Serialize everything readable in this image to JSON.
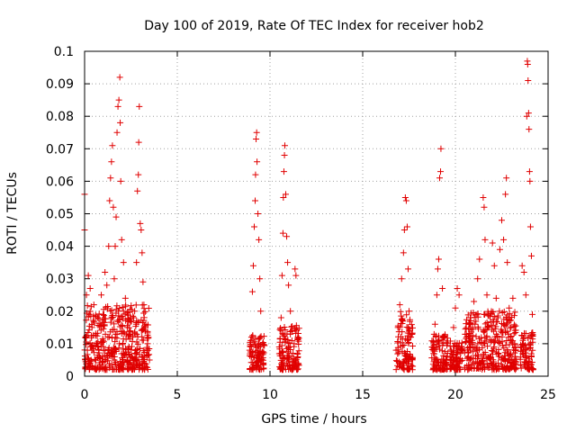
{
  "chart_data": {
    "type": "scatter",
    "title": "Day 100 of 2019, Rate Of TEC Index for receiver hob2",
    "xlabel": "GPS time / hours",
    "ylabel": "ROTI / TECUs",
    "xlim": [
      0,
      25
    ],
    "ylim": [
      0,
      0.1
    ],
    "x_ticks": [
      0,
      5,
      10,
      15,
      20,
      25
    ],
    "y_ticks": [
      0,
      0.01,
      0.02,
      0.03,
      0.04,
      0.05,
      0.06,
      0.07,
      0.08,
      0.09,
      0.1
    ],
    "x_tick_labels": [
      "0",
      "5",
      "10",
      "15",
      "20",
      "25"
    ],
    "y_tick_labels": [
      "0",
      "0.01",
      "0.02",
      "0.03",
      "0.04",
      "0.05",
      "0.06",
      "0.07",
      "0.08",
      "0.09",
      "0.1"
    ],
    "grid": true,
    "marker": "+",
    "series": [
      {
        "name": "ROTI",
        "color": "#e00000",
        "points": [
          [
            0.0,
            0.056
          ],
          [
            0.0,
            0.045
          ],
          [
            0.05,
            0.012
          ],
          [
            0.1,
            0.025
          ],
          [
            0.15,
            0.008
          ],
          [
            0.2,
            0.031
          ],
          [
            0.25,
            0.019
          ],
          [
            0.3,
            0.027
          ],
          [
            0.35,
            0.005
          ],
          [
            0.4,
            0.015
          ],
          [
            0.5,
            0.022
          ],
          [
            0.6,
            0.009
          ],
          [
            0.7,
            0.018
          ],
          [
            0.8,
            0.006
          ],
          [
            0.9,
            0.025
          ],
          [
            1.0,
            0.011
          ],
          [
            1.1,
            0.032
          ],
          [
            1.2,
            0.028
          ],
          [
            1.3,
            0.04
          ],
          [
            1.35,
            0.054
          ],
          [
            1.4,
            0.061
          ],
          [
            1.45,
            0.066
          ],
          [
            1.5,
            0.071
          ],
          [
            1.55,
            0.052
          ],
          [
            1.6,
            0.03
          ],
          [
            1.65,
            0.04
          ],
          [
            1.7,
            0.049
          ],
          [
            1.75,
            0.075
          ],
          [
            1.8,
            0.083
          ],
          [
            1.85,
            0.085
          ],
          [
            1.9,
            0.092
          ],
          [
            1.92,
            0.078
          ],
          [
            1.95,
            0.06
          ],
          [
            2.0,
            0.042
          ],
          [
            2.1,
            0.035
          ],
          [
            2.2,
            0.024
          ],
          [
            2.3,
            0.015
          ],
          [
            2.4,
            0.009
          ],
          [
            2.5,
            0.018
          ],
          [
            2.6,
            0.012
          ],
          [
            2.7,
            0.02
          ],
          [
            2.8,
            0.035
          ],
          [
            2.85,
            0.057
          ],
          [
            2.9,
            0.062
          ],
          [
            2.92,
            0.072
          ],
          [
            2.95,
            0.083
          ],
          [
            3.0,
            0.047
          ],
          [
            3.05,
            0.045
          ],
          [
            3.1,
            0.038
          ],
          [
            3.15,
            0.029
          ],
          [
            3.2,
            0.022
          ],
          [
            3.3,
            0.016
          ],
          [
            3.4,
            0.01
          ],
          [
            3.5,
            0.005
          ],
          [
            8.9,
            0.008
          ],
          [
            9.0,
            0.012
          ],
          [
            9.05,
            0.026
          ],
          [
            9.1,
            0.034
          ],
          [
            9.15,
            0.046
          ],
          [
            9.2,
            0.054
          ],
          [
            9.22,
            0.062
          ],
          [
            9.25,
            0.073
          ],
          [
            9.28,
            0.075
          ],
          [
            9.3,
            0.066
          ],
          [
            9.35,
            0.05
          ],
          [
            9.4,
            0.042
          ],
          [
            9.45,
            0.03
          ],
          [
            9.5,
            0.02
          ],
          [
            9.6,
            0.01
          ],
          [
            10.5,
            0.009
          ],
          [
            10.6,
            0.018
          ],
          [
            10.65,
            0.031
          ],
          [
            10.7,
            0.044
          ],
          [
            10.72,
            0.055
          ],
          [
            10.75,
            0.063
          ],
          [
            10.78,
            0.068
          ],
          [
            10.8,
            0.071
          ],
          [
            10.85,
            0.056
          ],
          [
            10.9,
            0.043
          ],
          [
            10.95,
            0.035
          ],
          [
            11.0,
            0.028
          ],
          [
            11.1,
            0.02
          ],
          [
            11.2,
            0.014
          ],
          [
            11.3,
            0.01
          ],
          [
            11.35,
            0.033
          ],
          [
            11.4,
            0.031
          ],
          [
            11.5,
            0.006
          ],
          [
            16.8,
            0.008
          ],
          [
            16.9,
            0.015
          ],
          [
            17.0,
            0.022
          ],
          [
            17.1,
            0.03
          ],
          [
            17.2,
            0.038
          ],
          [
            17.25,
            0.045
          ],
          [
            17.3,
            0.055
          ],
          [
            17.35,
            0.054
          ],
          [
            17.4,
            0.046
          ],
          [
            17.45,
            0.033
          ],
          [
            17.5,
            0.02
          ],
          [
            17.6,
            0.012
          ],
          [
            18.8,
            0.009
          ],
          [
            18.9,
            0.016
          ],
          [
            19.0,
            0.025
          ],
          [
            19.05,
            0.033
          ],
          [
            19.1,
            0.036
          ],
          [
            19.15,
            0.061
          ],
          [
            19.2,
            0.063
          ],
          [
            19.22,
            0.07
          ],
          [
            19.3,
            0.027
          ],
          [
            19.4,
            0.012
          ],
          [
            19.8,
            0.006
          ],
          [
            19.9,
            0.015
          ],
          [
            20.0,
            0.021
          ],
          [
            20.1,
            0.027
          ],
          [
            20.2,
            0.025
          ],
          [
            20.3,
            0.008
          ],
          [
            20.6,
            0.012
          ],
          [
            20.8,
            0.018
          ],
          [
            21.0,
            0.023
          ],
          [
            21.2,
            0.03
          ],
          [
            21.3,
            0.036
          ],
          [
            21.5,
            0.055
          ],
          [
            21.55,
            0.052
          ],
          [
            21.6,
            0.042
          ],
          [
            21.7,
            0.025
          ],
          [
            21.8,
            0.015
          ],
          [
            22.0,
            0.041
          ],
          [
            22.1,
            0.034
          ],
          [
            22.2,
            0.024
          ],
          [
            22.3,
            0.018
          ],
          [
            22.4,
            0.039
          ],
          [
            22.5,
            0.048
          ],
          [
            22.6,
            0.042
          ],
          [
            22.7,
            0.056
          ],
          [
            22.75,
            0.061
          ],
          [
            22.8,
            0.035
          ],
          [
            22.9,
            0.021
          ],
          [
            23.0,
            0.015
          ],
          [
            23.1,
            0.024
          ],
          [
            23.2,
            0.01
          ],
          [
            23.6,
            0.034
          ],
          [
            23.7,
            0.032
          ],
          [
            23.8,
            0.025
          ],
          [
            23.85,
            0.08
          ],
          [
            23.88,
            0.097
          ],
          [
            23.9,
            0.096
          ],
          [
            23.92,
            0.091
          ],
          [
            23.95,
            0.081
          ],
          [
            23.97,
            0.076
          ],
          [
            24.0,
            0.063
          ],
          [
            24.02,
            0.06
          ],
          [
            24.05,
            0.046
          ],
          [
            24.1,
            0.037
          ],
          [
            24.15,
            0.019
          ]
        ]
      }
    ],
    "dense_clusters": [
      {
        "x_range": [
          0.0,
          3.5
        ],
        "y_range": [
          0.002,
          0.022
        ]
      },
      {
        "x_range": [
          8.9,
          9.7
        ],
        "y_range": [
          0.002,
          0.013
        ]
      },
      {
        "x_range": [
          10.5,
          11.6
        ],
        "y_range": [
          0.002,
          0.016
        ]
      },
      {
        "x_range": [
          16.8,
          17.7
        ],
        "y_range": [
          0.002,
          0.02
        ]
      },
      {
        "x_range": [
          18.7,
          19.6
        ],
        "y_range": [
          0.002,
          0.013
        ]
      },
      {
        "x_range": [
          19.7,
          20.4
        ],
        "y_range": [
          0.002,
          0.011
        ]
      },
      {
        "x_range": [
          20.5,
          23.3
        ],
        "y_range": [
          0.002,
          0.02
        ]
      },
      {
        "x_range": [
          23.5,
          24.2
        ],
        "y_range": [
          0.002,
          0.014
        ]
      }
    ]
  }
}
